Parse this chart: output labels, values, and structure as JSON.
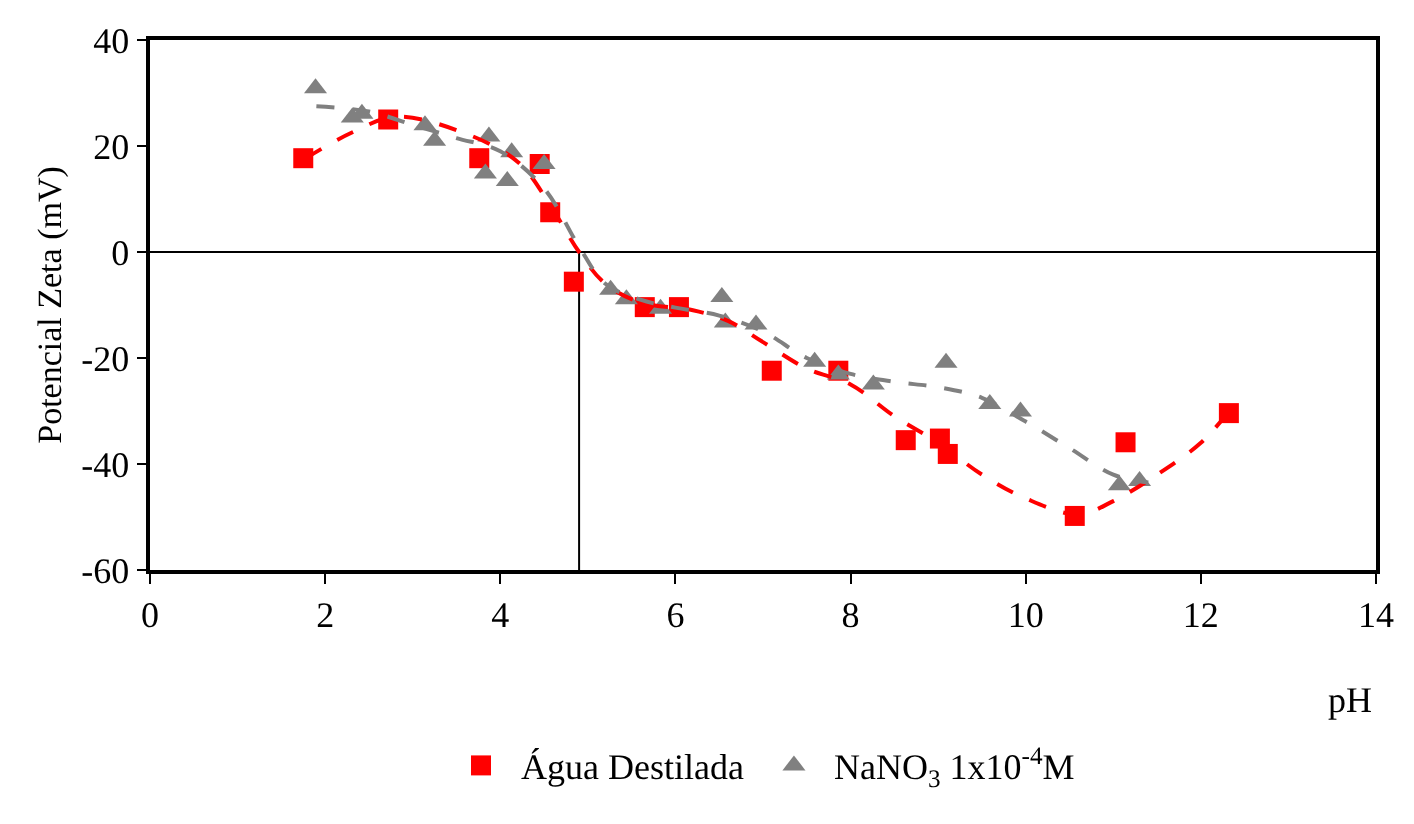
{
  "chart_data": {
    "type": "scatter",
    "xlabel": "pH",
    "ylabel": "Potencial Zeta (mV)",
    "xlim": [
      0,
      14
    ],
    "xticks": [
      0,
      2,
      4,
      6,
      8,
      10,
      12,
      14
    ],
    "ylim": [
      -60,
      40
    ],
    "yticks": [
      -60,
      -40,
      -20,
      0,
      20,
      40
    ],
    "grid": false,
    "legend": "bottom",
    "ref_lines": [
      {
        "axis": "y",
        "value": 0,
        "color": "#000000"
      },
      {
        "axis": "x",
        "value": 4.9,
        "color": "#000000"
      }
    ],
    "series": [
      {
        "name": "Água Destilada",
        "marker": "square",
        "color": "#ff0000",
        "x": [
          1.75,
          2.72,
          3.76,
          4.45,
          4.57,
          4.84,
          5.65,
          6.04,
          7.1,
          7.86,
          8.63,
          9.02,
          9.11,
          10.56,
          11.14,
          12.32
        ],
        "values": [
          17.7,
          25.0,
          17.7,
          16.6,
          7.5,
          -5.6,
          -10.4,
          -10.4,
          -22.4,
          -22.4,
          -35.5,
          -35.2,
          -38.1,
          -49.8,
          -35.9,
          -30.4
        ]
      },
      {
        "name": "NaNO$_{3}$ 1x10$^{-4}$M",
        "marker": "triangle",
        "color": "#808080",
        "x": [
          1.89,
          2.31,
          2.42,
          3.14,
          3.25,
          3.87,
          3.83,
          4.13,
          4.08,
          4.5,
          5.26,
          5.44,
          5.83,
          6.53,
          6.57,
          6.92,
          7.59,
          7.86,
          8.26,
          9.09,
          9.59,
          9.94,
          11.07,
          11.3
        ],
        "values": [
          30.9,
          25.4,
          26.1,
          23.9,
          21.0,
          21.8,
          14.8,
          18.8,
          13.4,
          16.6,
          -7.1,
          -8.9,
          -10.7,
          -8.5,
          -13.3,
          -13.7,
          -20.7,
          -23.1,
          -25.0,
          -20.9,
          -28.7,
          -30.1,
          -44.0,
          -43.2
        ]
      },
      {
        "type": "line",
        "marker": "none",
        "line_style": "dashed",
        "color": "#ff0000",
        "x": [
          1.78,
          2.3,
          2.8,
          3.5,
          4.2,
          4.6,
          4.9,
          5.2,
          5.6,
          6.2,
          6.6,
          7.0,
          7.5,
          8.0,
          8.5,
          9.0,
          9.5,
          10.0,
          10.6,
          11.0,
          11.5,
          12.0,
          12.3
        ],
        "values": [
          17.7,
          22.5,
          25.5,
          23,
          17,
          8,
          0,
          -6,
          -9.5,
          -11,
          -13,
          -17,
          -22,
          -25,
          -31,
          -36,
          -42,
          -46.5,
          -49.5,
          -47,
          -42,
          -36,
          -30.5
        ]
      },
      {
        "type": "line",
        "marker": "none",
        "line_style": "dashed",
        "color": "#808080",
        "x": [
          1.9,
          2.5,
          3.0,
          3.5,
          4.0,
          4.5,
          4.9,
          5.2,
          5.6,
          6.0,
          6.5,
          7.0,
          7.5,
          8.0,
          8.5,
          9.0,
          9.5,
          10.0,
          10.5,
          11.0,
          11.4
        ],
        "values": [
          27.5,
          26.5,
          24,
          21.5,
          19,
          12,
          1,
          -6,
          -9,
          -10.5,
          -12,
          -15,
          -20,
          -23,
          -24.5,
          -25.5,
          -27.5,
          -32,
          -37,
          -42,
          -43.5
        ]
      }
    ]
  }
}
